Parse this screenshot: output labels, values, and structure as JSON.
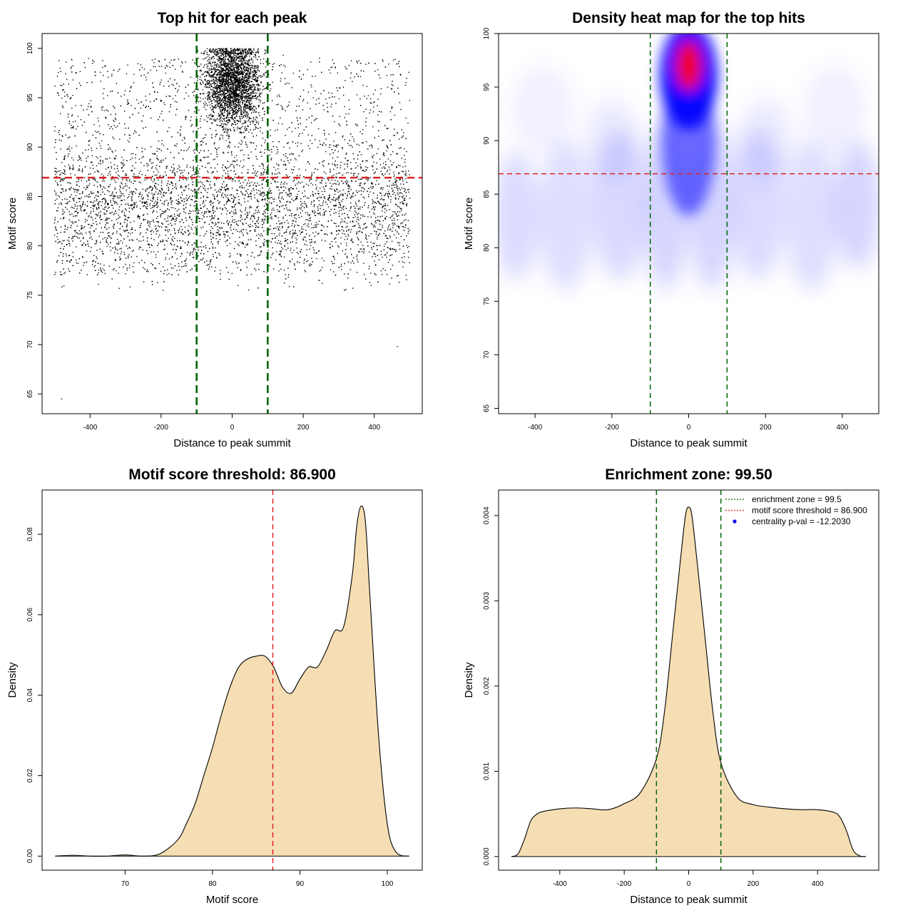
{
  "colors": {
    "points": "#000000",
    "threshold_line": "#dd2222",
    "zone_line": "#006400",
    "density_fill": "#f5deb3",
    "heat_low": "#ffffff",
    "heat_mid": "#0000ff",
    "heat_high": "#ff0000"
  },
  "chart_data": [
    {
      "id": "scatter",
      "type": "scatter",
      "title": "Top hit for each peak",
      "xlabel": "Distance to peak summit",
      "ylabel": "Motif score",
      "xlim": [
        -535,
        535
      ],
      "ylim": [
        63,
        101.5
      ],
      "xticks": [
        -400,
        -200,
        0,
        200,
        400
      ],
      "yticks": [
        65,
        70,
        75,
        80,
        85,
        90,
        95,
        100
      ],
      "background_points": 5800,
      "central_points": 3600,
      "background_x_range": [
        -500,
        500
      ],
      "background_score_range": [
        75,
        99
      ],
      "central_cluster": {
        "x_center": 0,
        "x_sd": 38,
        "score_center": 96.5,
        "score_sd": 2.2
      },
      "outliers": [
        {
          "x": -480,
          "y": 64.5
        },
        {
          "x": 465,
          "y": 69.8
        }
      ],
      "hline": 86.9,
      "vlines": [
        -100,
        100
      ]
    },
    {
      "id": "heatmap",
      "type": "heatmap",
      "title": "Density heat map for the top hits",
      "xlabel": "Distance to peak summit",
      "ylabel": "Motif score",
      "xlim": [
        -495,
        495
      ],
      "ylim": [
        64.5,
        100
      ],
      "xticks": [
        -400,
        -200,
        0,
        200,
        400
      ],
      "yticks": [
        65,
        70,
        75,
        80,
        85,
        90,
        95,
        100
      ],
      "peak": {
        "x": 0,
        "y": 97,
        "level": "high"
      },
      "hline": 86.9,
      "vlines": [
        -100,
        100
      ]
    },
    {
      "id": "score-density",
      "type": "area",
      "title": "Motif score threshold: 86.900",
      "xlabel": "Motif score",
      "ylabel": "Density",
      "xlim": [
        60.5,
        104
      ],
      "ylim": [
        -0.0035,
        0.091
      ],
      "xticks": [
        70,
        80,
        90,
        100
      ],
      "yticks": [
        0.0,
        0.02,
        0.04,
        0.06,
        0.08
      ],
      "ytick_labels": [
        "0.00",
        "0.02",
        "0.04",
        "0.06",
        "0.08"
      ],
      "x": [
        62,
        64,
        66,
        68,
        70,
        72,
        74,
        76,
        77,
        78,
        79,
        80,
        81,
        82,
        83,
        84,
        85,
        86,
        87,
        88,
        89,
        90,
        91,
        92,
        93,
        94,
        95,
        96,
        96.5,
        97,
        97.5,
        98,
        99,
        100,
        101,
        102.5
      ],
      "values": [
        0.0,
        0.0002,
        0.0,
        0.0,
        0.0003,
        0.0,
        0.0006,
        0.004,
        0.008,
        0.013,
        0.02,
        0.027,
        0.035,
        0.042,
        0.047,
        0.049,
        0.0497,
        0.0497,
        0.047,
        0.042,
        0.0405,
        0.044,
        0.047,
        0.047,
        0.051,
        0.056,
        0.057,
        0.07,
        0.082,
        0.087,
        0.083,
        0.065,
        0.03,
        0.008,
        0.001,
        0.0
      ],
      "vline": 86.9
    },
    {
      "id": "distance-density",
      "type": "area",
      "title": "Enrichment zone: 99.50",
      "xlabel": "Distance to peak summit",
      "ylabel": "Density",
      "xlim": [
        -590,
        590
      ],
      "ylim": [
        -0.00016,
        0.0043
      ],
      "xticks": [
        -400,
        -200,
        0,
        200,
        400
      ],
      "yticks": [
        0.0,
        0.001,
        0.002,
        0.003,
        0.004
      ],
      "ytick_labels": [
        "0.000",
        "0.001",
        "0.002",
        "0.003",
        "0.004"
      ],
      "x": [
        -550,
        -530,
        -510,
        -490,
        -470,
        -450,
        -400,
        -350,
        -300,
        -250,
        -200,
        -150,
        -100,
        -75,
        -50,
        -25,
        -10,
        0,
        10,
        25,
        50,
        75,
        100,
        150,
        200,
        250,
        300,
        350,
        400,
        450,
        470,
        490,
        510,
        530,
        550
      ],
      "values": [
        0.0,
        3e-05,
        0.0002,
        0.00042,
        0.0005,
        0.00053,
        0.00056,
        0.00057,
        0.00056,
        0.00055,
        0.00062,
        0.00075,
        0.00115,
        0.0017,
        0.0026,
        0.0035,
        0.004,
        0.0041,
        0.004,
        0.0035,
        0.0026,
        0.0017,
        0.0011,
        0.0007,
        0.00061,
        0.00058,
        0.00056,
        0.00055,
        0.00055,
        0.00052,
        0.00046,
        0.0003,
        8e-05,
        1e-05,
        0.0
      ],
      "vlines": [
        -100,
        100
      ],
      "legend": {
        "position": "top-right",
        "items": [
          {
            "label": "enrichment zone = 99.5",
            "style": "dotted",
            "color": "#006400"
          },
          {
            "label": "motif score threshold = 86.900",
            "style": "dotted",
            "color": "#dd2222"
          },
          {
            "label": "centrality p-val = -12.2030",
            "style": "point",
            "color": "#0000ff"
          }
        ]
      }
    }
  ]
}
